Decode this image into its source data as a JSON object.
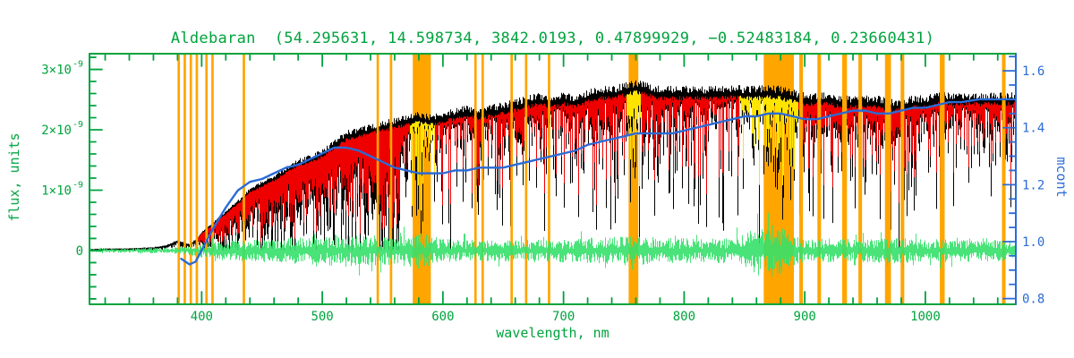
{
  "colors": {
    "axis_green": "#00A33E",
    "mcont_blue": "#2B6BD5",
    "observed_black": "#000000",
    "model_red": "#EE0000",
    "masked_model_yellow": "#FFE400",
    "residual_green": "#35E06A",
    "telluric_orange": "#FFA500",
    "background": "#FFFFFF"
  },
  "chart_data": {
    "type": "line",
    "title": "Aldebaran  (54.295631, 14.598734, 3842.0193, 0.47899929, −0.52483184, 0.23660431)",
    "star_name": "Aldebaran",
    "title_values": [
      54.295631,
      14.598734,
      3842.0193,
      0.47899929,
      -0.52483184,
      0.23660431
    ],
    "xlabel": "wavelength, nm",
    "ylabel_left": "flux, units",
    "ylabel_right": "mcont",
    "xlim": [
      307,
      1075
    ],
    "ylim_left_e9": [
      -0.89,
      3.26
    ],
    "ylim_right": [
      0.78,
      1.66
    ],
    "x_major_ticks": [
      400,
      500,
      600,
      700,
      800,
      900,
      1000
    ],
    "x_minor_step": 20,
    "y_left_ticks": [
      {
        "value_e9": 3,
        "mant": "3×10",
        "exp": "-9"
      },
      {
        "value_e9": 2,
        "mant": "2×10",
        "exp": "-9"
      },
      {
        "value_e9": 1,
        "mant": "1×10",
        "exp": "-9"
      },
      {
        "value_e9": 0,
        "label": "0"
      }
    ],
    "y_left_minor_step_e9": 0.2,
    "y_right_ticks": [
      0.8,
      1.0,
      1.2,
      1.4,
      1.6
    ],
    "y_right_minor_step": 0.05,
    "series": [
      {
        "name": "observed_flux",
        "color_key": "observed_black",
        "axis": "left",
        "units": "1e-9 flux units (upper envelope, absorption lines extend downward)",
        "x": [
          307,
          320,
          335,
          350,
          360,
          370,
          375,
          380,
          385,
          390,
          395,
          400,
          405,
          410,
          415,
          420,
          425,
          430,
          435,
          440,
          445,
          450,
          460,
          470,
          480,
          490,
          500,
          510,
          520,
          530,
          540,
          550,
          560,
          570,
          580,
          590,
          600,
          610,
          620,
          630,
          640,
          650,
          660,
          670,
          680,
          690,
          700,
          710,
          720,
          730,
          740,
          750,
          760,
          770,
          780,
          790,
          800,
          810,
          820,
          830,
          840,
          850,
          860,
          870,
          880,
          890,
          900,
          910,
          920,
          930,
          940,
          950,
          960,
          970,
          980,
          990,
          1000,
          1010,
          1020,
          1030,
          1045,
          1060,
          1075
        ],
        "flux_e9": [
          0.02,
          0.03,
          0.03,
          0.04,
          0.05,
          0.08,
          0.12,
          0.16,
          0.12,
          0.1,
          0.18,
          0.3,
          0.38,
          0.46,
          0.55,
          0.63,
          0.72,
          0.8,
          0.9,
          1.0,
          1.05,
          1.1,
          1.2,
          1.33,
          1.45,
          1.52,
          1.6,
          1.75,
          1.9,
          1.95,
          2.0,
          2.05,
          2.1,
          2.15,
          2.2,
          2.15,
          2.2,
          2.25,
          2.3,
          2.25,
          2.3,
          2.35,
          2.4,
          2.45,
          2.5,
          2.45,
          2.5,
          2.45,
          2.55,
          2.6,
          2.6,
          2.65,
          2.7,
          2.65,
          2.6,
          2.6,
          2.6,
          2.6,
          2.6,
          2.6,
          2.62,
          2.6,
          2.6,
          2.62,
          2.6,
          2.55,
          2.5,
          2.5,
          2.5,
          2.45,
          2.45,
          2.45,
          2.45,
          2.4,
          2.4,
          2.45,
          2.45,
          2.5,
          2.5,
          2.5,
          2.5,
          2.5,
          2.5
        ]
      },
      {
        "name": "model_flux",
        "color_key": "model_red",
        "masked_color_key": "masked_model_yellow",
        "axis": "left",
        "starts_at_nm": 397,
        "masked_ranges_nm": [
          [
            572,
            593
          ],
          [
            752,
            764
          ],
          [
            845,
            894
          ]
        ],
        "note": "model follows observed envelope; drawn yellow inside masked ranges"
      },
      {
        "name": "residuals",
        "color_key": "residual_green",
        "axis": "left",
        "centered_at_e9": 0,
        "x": [
          307,
          340,
          370,
          390,
          400,
          420,
          440,
          460,
          480,
          500,
          520,
          540,
          560,
          580,
          600,
          620,
          640,
          660,
          680,
          700,
          720,
          740,
          760,
          780,
          800,
          820,
          840,
          852,
          860,
          875,
          886,
          900,
          920,
          940,
          960,
          980,
          1000,
          1020,
          1040,
          1060,
          1075
        ],
        "amp_e9": [
          0.03,
          0.04,
          0.05,
          0.08,
          0.12,
          0.16,
          0.18,
          0.2,
          0.22,
          0.25,
          0.27,
          0.25,
          0.24,
          0.3,
          0.2,
          0.18,
          0.18,
          0.18,
          0.18,
          0.2,
          0.22,
          0.22,
          0.27,
          0.22,
          0.21,
          0.2,
          0.22,
          0.3,
          0.42,
          0.45,
          0.3,
          0.18,
          0.2,
          0.18,
          0.2,
          0.22,
          0.18,
          0.2,
          0.18,
          0.18,
          0.18
        ]
      },
      {
        "name": "mcont",
        "color_key": "mcont_blue",
        "axis": "right",
        "x": [
          383,
          390,
          395,
          400,
          410,
          420,
          430,
          440,
          450,
          460,
          470,
          480,
          490,
          500,
          510,
          520,
          530,
          540,
          550,
          560,
          570,
          580,
          590,
          600,
          610,
          620,
          630,
          640,
          650,
          660,
          670,
          680,
          690,
          700,
          710,
          720,
          730,
          740,
          750,
          760,
          770,
          780,
          790,
          800,
          810,
          820,
          830,
          840,
          850,
          860,
          870,
          880,
          890,
          900,
          910,
          920,
          930,
          940,
          950,
          960,
          970,
          980,
          990,
          1000,
          1010,
          1020,
          1030,
          1045,
          1060,
          1075
        ],
        "y": [
          0.94,
          0.92,
          0.93,
          0.97,
          1.05,
          1.12,
          1.18,
          1.21,
          1.22,
          1.24,
          1.26,
          1.27,
          1.29,
          1.31,
          1.33,
          1.33,
          1.32,
          1.3,
          1.28,
          1.26,
          1.25,
          1.24,
          1.24,
          1.24,
          1.25,
          1.25,
          1.26,
          1.26,
          1.26,
          1.27,
          1.28,
          1.29,
          1.3,
          1.31,
          1.32,
          1.34,
          1.35,
          1.36,
          1.37,
          1.38,
          1.38,
          1.38,
          1.38,
          1.39,
          1.4,
          1.41,
          1.42,
          1.43,
          1.44,
          1.44,
          1.45,
          1.45,
          1.44,
          1.43,
          1.43,
          1.44,
          1.45,
          1.46,
          1.46,
          1.45,
          1.45,
          1.46,
          1.47,
          1.47,
          1.48,
          1.49,
          1.49,
          1.5,
          1.5,
          1.5
        ]
      }
    ],
    "telluric_bands": {
      "color_key": "telluric_orange",
      "wide_nm": [
        [
          575,
          590
        ],
        [
          754,
          762
        ],
        [
          866,
          891
        ]
      ],
      "narrow_nm": [
        {
          "nm": 381,
          "w": 2
        },
        {
          "nm": 386,
          "w": 2
        },
        {
          "nm": 391,
          "w": 2
        },
        {
          "nm": 396,
          "w": 2
        },
        {
          "nm": 404,
          "w": 2
        },
        {
          "nm": 409,
          "w": 2
        },
        {
          "nm": 435,
          "w": 2
        },
        {
          "nm": 546,
          "w": 2
        },
        {
          "nm": 557,
          "w": 2
        },
        {
          "nm": 627,
          "w": 2
        },
        {
          "nm": 633,
          "w": 2
        },
        {
          "nm": 657,
          "w": 2
        },
        {
          "nm": 669,
          "w": 2
        },
        {
          "nm": 688,
          "w": 2
        },
        {
          "nm": 897,
          "w": 3
        },
        {
          "nm": 912,
          "w": 3
        },
        {
          "nm": 933,
          "w": 4
        },
        {
          "nm": 946,
          "w": 3
        },
        {
          "nm": 969,
          "w": 5
        },
        {
          "nm": 981,
          "w": 3
        },
        {
          "nm": 1014,
          "w": 4
        },
        {
          "nm": 1065,
          "w": 3
        }
      ]
    }
  }
}
